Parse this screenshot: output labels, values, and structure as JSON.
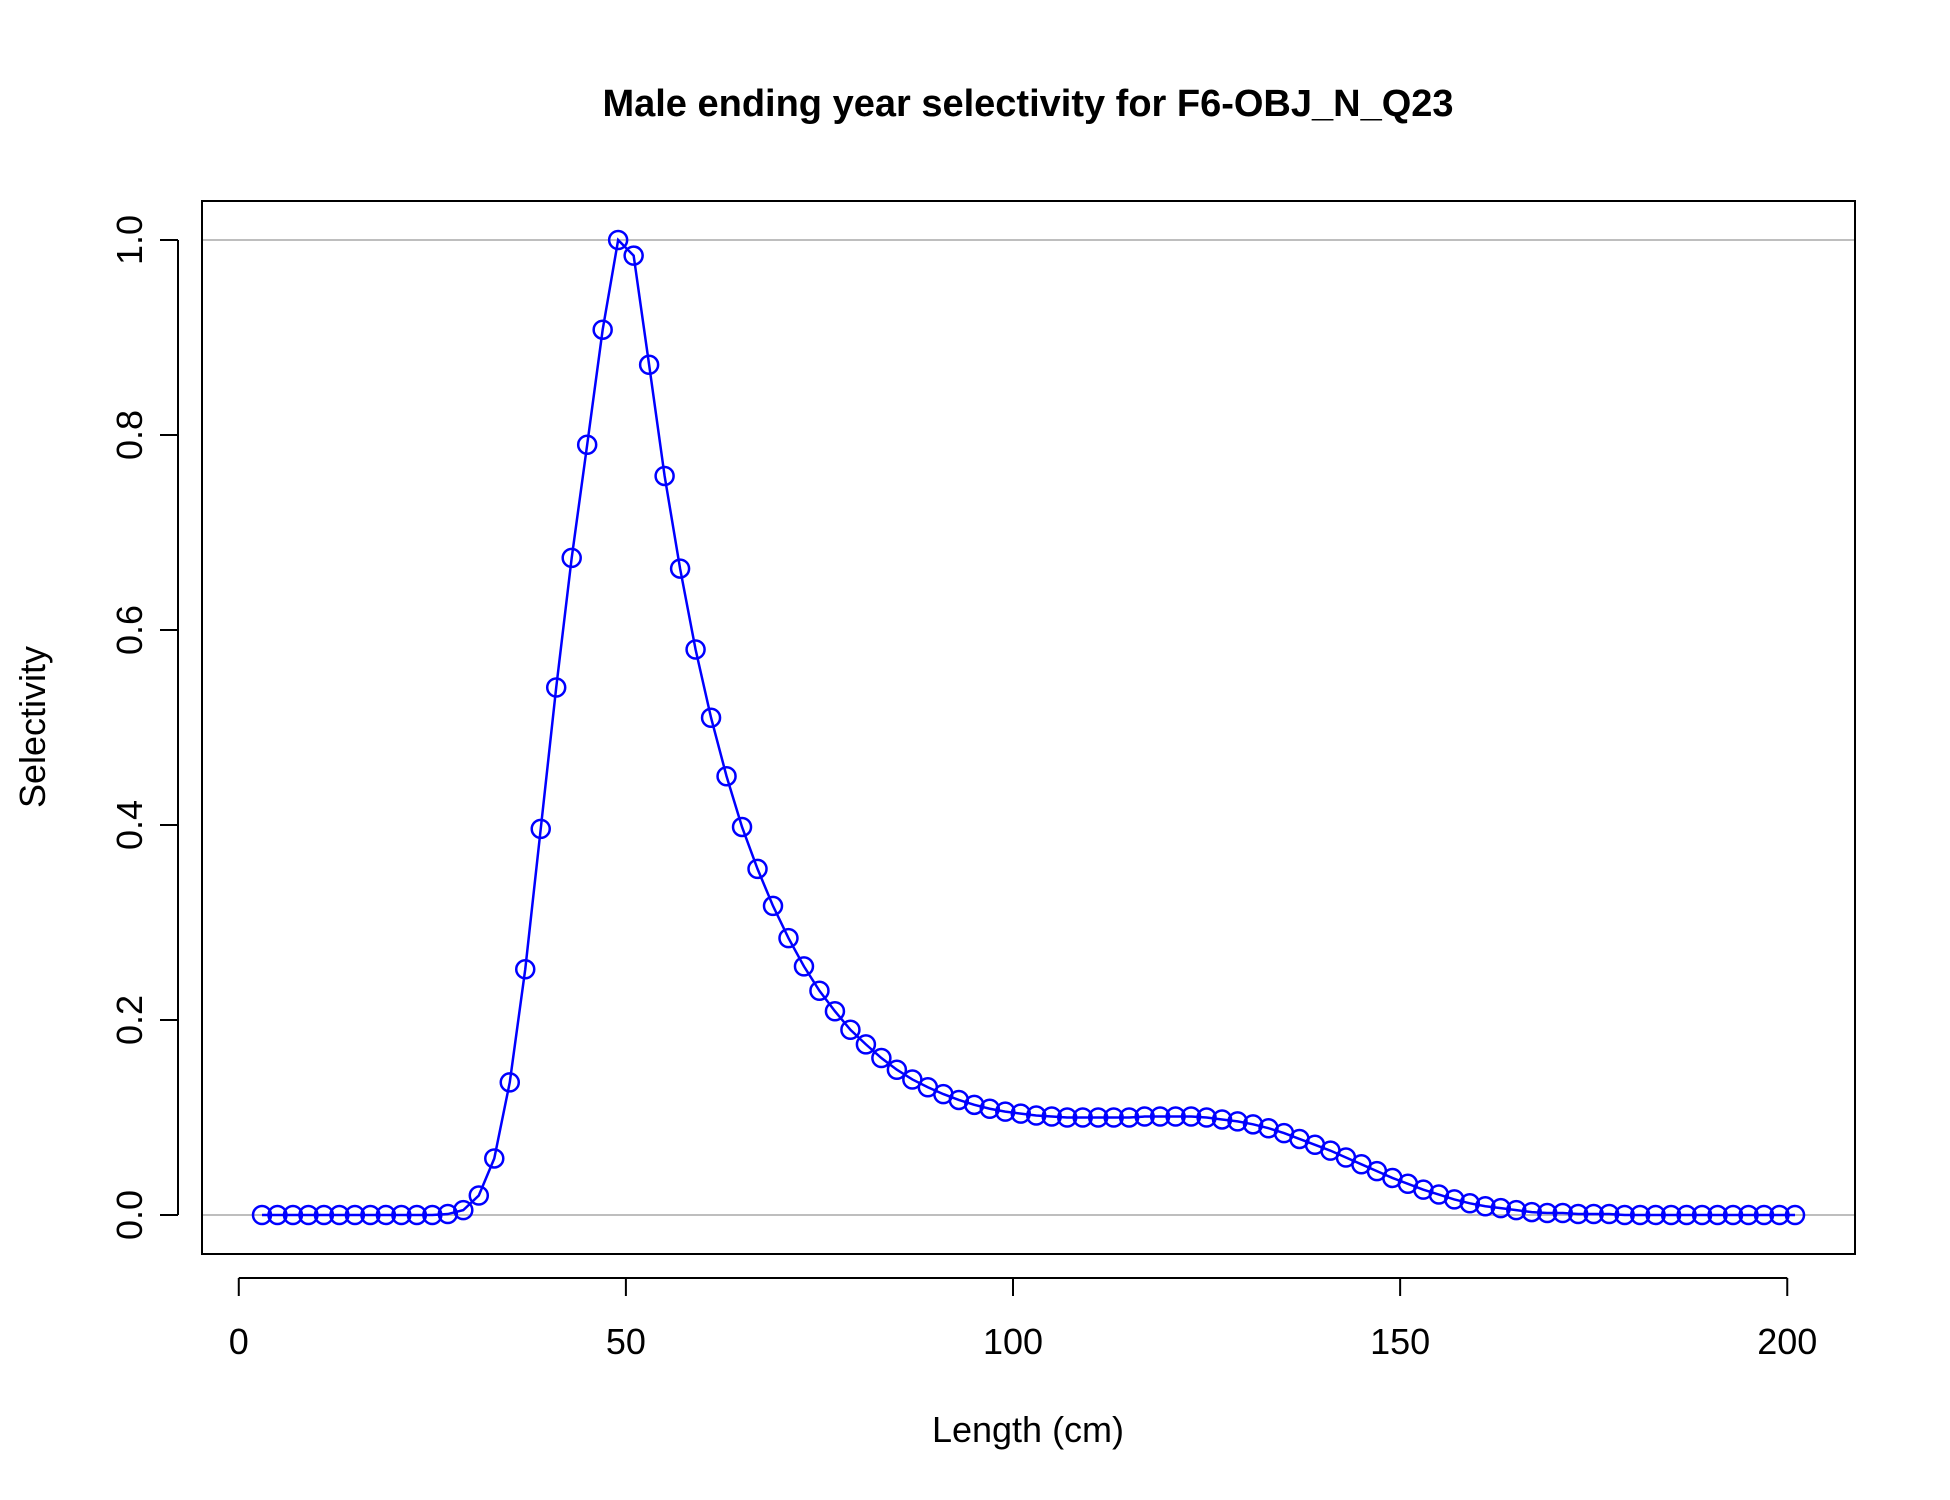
{
  "chart_data": {
    "type": "line",
    "title": "Male ending year selectivity for F6-OBJ_N_Q23",
    "xlabel": "Length (cm)",
    "ylabel": "Selectivity",
    "xlim": [
      3,
      201
    ],
    "ylim": [
      0,
      1
    ],
    "x_ticks": [
      0,
      50,
      100,
      150,
      200
    ],
    "y_ticks": [
      0.0,
      0.2,
      0.4,
      0.6,
      0.8,
      1.0
    ],
    "x_tick_labels": [
      "0",
      "50",
      "100",
      "150",
      "200"
    ],
    "y_tick_labels": [
      "0.0",
      "0.2",
      "0.4",
      "0.6",
      "0.8",
      "1.0"
    ],
    "reference_lines": [
      0,
      1
    ],
    "grid": false,
    "line_color": "#0000ff",
    "reference_line_color": "#bebebe",
    "marker": "open-circle",
    "x": [
      3,
      5,
      7,
      9,
      11,
      13,
      15,
      17,
      19,
      21,
      23,
      25,
      27,
      29,
      31,
      33,
      35,
      37,
      39,
      41,
      43,
      45,
      47,
      49,
      51,
      53,
      55,
      57,
      59,
      61,
      63,
      65,
      67,
      69,
      71,
      73,
      75,
      77,
      79,
      81,
      83,
      85,
      87,
      89,
      91,
      93,
      95,
      97,
      99,
      101,
      103,
      105,
      107,
      109,
      111,
      113,
      115,
      117,
      119,
      121,
      123,
      125,
      127,
      129,
      131,
      133,
      135,
      137,
      139,
      141,
      143,
      145,
      147,
      149,
      151,
      153,
      155,
      157,
      159,
      161,
      163,
      165,
      167,
      169,
      171,
      173,
      175,
      177,
      179,
      181,
      183,
      185,
      187,
      189,
      191,
      193,
      195,
      197,
      199,
      201
    ],
    "values": [
      0,
      0,
      0,
      0,
      0,
      0,
      0,
      0,
      0,
      0,
      0,
      0,
      0.001,
      0.005,
      0.02,
      0.058,
      0.136,
      0.252,
      0.396,
      0.541,
      0.674,
      0.79,
      0.908,
      1.0,
      0.984,
      0.872,
      0.758,
      0.663,
      0.58,
      0.51,
      0.45,
      0.398,
      0.355,
      0.317,
      0.284,
      0.255,
      0.23,
      0.209,
      0.19,
      0.175,
      0.161,
      0.149,
      0.139,
      0.131,
      0.124,
      0.118,
      0.113,
      0.109,
      0.106,
      0.104,
      0.102,
      0.101,
      0.1,
      0.1,
      0.1,
      0.1,
      0.1,
      0.101,
      0.101,
      0.101,
      0.101,
      0.1,
      0.098,
      0.096,
      0.093,
      0.089,
      0.084,
      0.078,
      0.072,
      0.066,
      0.059,
      0.052,
      0.045,
      0.038,
      0.032,
      0.026,
      0.021,
      0.016,
      0.012,
      0.009,
      0.007,
      0.005,
      0.003,
      0.002,
      0.002,
      0.001,
      0.001,
      0.001,
      0,
      0,
      0,
      0,
      0,
      0,
      0,
      0,
      0,
      0,
      0,
      0
    ]
  }
}
